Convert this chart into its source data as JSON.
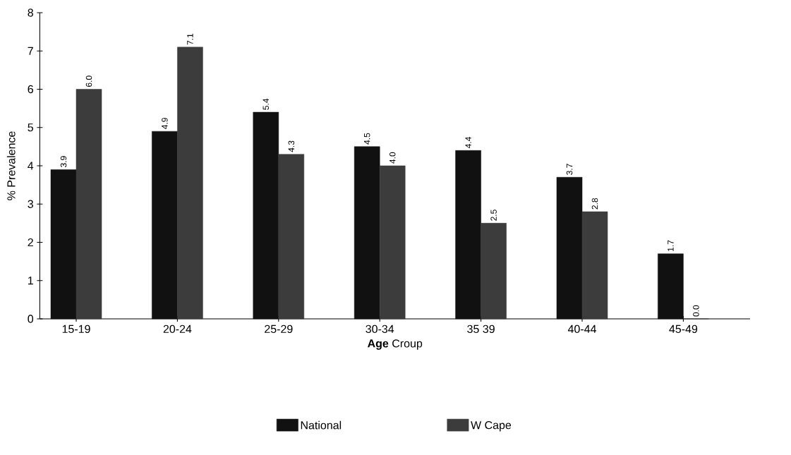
{
  "chart_data": {
    "type": "bar",
    "xlabel": "**Age** Croup",
    "ylabel": "% Prevalence",
    "categories": [
      "15-19",
      "20-24",
      "25-29",
      "30-34",
      "35 39",
      "40-44",
      "45-49"
    ],
    "series": [
      {
        "name": "National",
        "color": "#111111",
        "values": [
          3.9,
          4.9,
          5.4,
          4.5,
          4.4,
          3.7,
          1.7
        ],
        "value_labels": [
          "3.9",
          "4.9",
          "5.4",
          "4.5",
          "4.4",
          "3.7",
          "1.7"
        ]
      },
      {
        "name": "W Cape",
        "color": "#3c3c3c",
        "values": [
          6.0,
          7.1,
          4.3,
          4.0,
          2.5,
          2.8,
          0.0
        ],
        "value_labels": [
          "6.0",
          "7.1",
          "4.3",
          "4.0",
          "2.5",
          "2.8",
          "0.0"
        ]
      }
    ],
    "ylim": [
      0,
      8
    ],
    "yticks": [
      0,
      1,
      2,
      3,
      4,
      5,
      6,
      7,
      8
    ],
    "legend": "bottom"
  }
}
